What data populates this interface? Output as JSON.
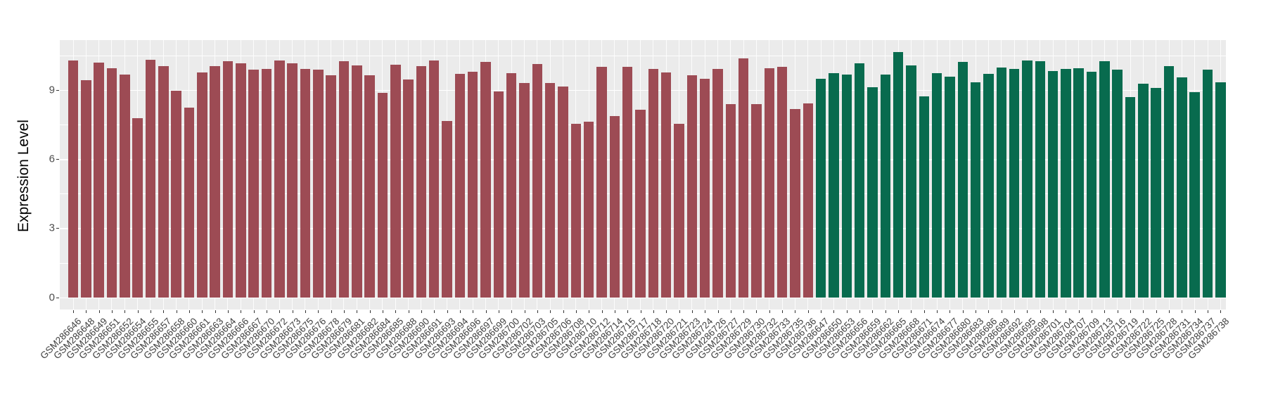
{
  "chart_data": {
    "type": "bar",
    "title": "",
    "xlabel": "",
    "ylabel": "Expression Level",
    "ylim": [
      0,
      11.17
    ],
    "yticks": [
      0,
      3,
      6,
      9
    ],
    "yticks_minor": [
      1.5,
      4.5,
      7.5,
      10.5
    ],
    "grid": "on",
    "legend": "none",
    "panel_background": "#EBEBEB",
    "grid_color": "#FFFFFF",
    "group_colors": {
      "group1": "#9D4B54",
      "group2": "#086B4E"
    },
    "series": [
      {
        "sample": "GSM286646",
        "value": 10.29,
        "group": "group1"
      },
      {
        "sample": "GSM286648",
        "value": 9.42,
        "group": "group1"
      },
      {
        "sample": "GSM286649",
        "value": 10.18,
        "group": "group1"
      },
      {
        "sample": "GSM286651",
        "value": 9.93,
        "group": "group1"
      },
      {
        "sample": "GSM286652",
        "value": 9.67,
        "group": "group1"
      },
      {
        "sample": "GSM286654",
        "value": 7.77,
        "group": "group1"
      },
      {
        "sample": "GSM286655",
        "value": 10.31,
        "group": "group1"
      },
      {
        "sample": "GSM286657",
        "value": 10.03,
        "group": "group1"
      },
      {
        "sample": "GSM286658",
        "value": 8.96,
        "group": "group1"
      },
      {
        "sample": "GSM286660",
        "value": 8.23,
        "group": "group1"
      },
      {
        "sample": "GSM286661",
        "value": 9.77,
        "group": "group1"
      },
      {
        "sample": "GSM286663",
        "value": 10.03,
        "group": "group1"
      },
      {
        "sample": "GSM286664",
        "value": 10.26,
        "group": "group1"
      },
      {
        "sample": "GSM286666",
        "value": 10.16,
        "group": "group1"
      },
      {
        "sample": "GSM286667",
        "value": 9.87,
        "group": "group1"
      },
      {
        "sample": "GSM286670",
        "value": 9.9,
        "group": "group1"
      },
      {
        "sample": "GSM286672",
        "value": 10.29,
        "group": "group1"
      },
      {
        "sample": "GSM286673",
        "value": 10.16,
        "group": "group1"
      },
      {
        "sample": "GSM286675",
        "value": 9.92,
        "group": "group1"
      },
      {
        "sample": "GSM286676",
        "value": 9.88,
        "group": "group1"
      },
      {
        "sample": "GSM286678",
        "value": 9.65,
        "group": "group1"
      },
      {
        "sample": "GSM286679",
        "value": 10.24,
        "group": "group1"
      },
      {
        "sample": "GSM286681",
        "value": 10.06,
        "group": "group1"
      },
      {
        "sample": "GSM286682",
        "value": 9.63,
        "group": "group1"
      },
      {
        "sample": "GSM286684",
        "value": 8.87,
        "group": "group1"
      },
      {
        "sample": "GSM286685",
        "value": 10.11,
        "group": "group1"
      },
      {
        "sample": "GSM286688",
        "value": 9.47,
        "group": "group1"
      },
      {
        "sample": "GSM286690",
        "value": 10.04,
        "group": "group1"
      },
      {
        "sample": "GSM286691",
        "value": 10.28,
        "group": "group1"
      },
      {
        "sample": "GSM286693",
        "value": 7.66,
        "group": "group1"
      },
      {
        "sample": "GSM286694",
        "value": 9.7,
        "group": "group1"
      },
      {
        "sample": "GSM286696",
        "value": 9.8,
        "group": "group1"
      },
      {
        "sample": "GSM286697",
        "value": 10.21,
        "group": "group1"
      },
      {
        "sample": "GSM286699",
        "value": 8.94,
        "group": "group1"
      },
      {
        "sample": "GSM286700",
        "value": 9.72,
        "group": "group1"
      },
      {
        "sample": "GSM286702",
        "value": 9.29,
        "group": "group1"
      },
      {
        "sample": "GSM286703",
        "value": 10.14,
        "group": "group1"
      },
      {
        "sample": "GSM286705",
        "value": 9.31,
        "group": "group1"
      },
      {
        "sample": "GSM286706",
        "value": 9.14,
        "group": "group1"
      },
      {
        "sample": "GSM286708",
        "value": 7.53,
        "group": "group1"
      },
      {
        "sample": "GSM286710",
        "value": 7.63,
        "group": "group1"
      },
      {
        "sample": "GSM286712",
        "value": 10.02,
        "group": "group1"
      },
      {
        "sample": "GSM286714",
        "value": 7.87,
        "group": "group1"
      },
      {
        "sample": "GSM286715",
        "value": 10.02,
        "group": "group1"
      },
      {
        "sample": "GSM286717",
        "value": 8.14,
        "group": "group1"
      },
      {
        "sample": "GSM286718",
        "value": 9.92,
        "group": "group1"
      },
      {
        "sample": "GSM286720",
        "value": 9.75,
        "group": "group1"
      },
      {
        "sample": "GSM286721",
        "value": 7.53,
        "group": "group1"
      },
      {
        "sample": "GSM286723",
        "value": 9.65,
        "group": "group1"
      },
      {
        "sample": "GSM286724",
        "value": 9.49,
        "group": "group1"
      },
      {
        "sample": "GSM286726",
        "value": 9.92,
        "group": "group1"
      },
      {
        "sample": "GSM286727",
        "value": 8.4,
        "group": "group1"
      },
      {
        "sample": "GSM286729",
        "value": 10.36,
        "group": "group1"
      },
      {
        "sample": "GSM286730",
        "value": 8.4,
        "group": "group1"
      },
      {
        "sample": "GSM286732",
        "value": 9.95,
        "group": "group1"
      },
      {
        "sample": "GSM286733",
        "value": 10.0,
        "group": "group1"
      },
      {
        "sample": "GSM286735",
        "value": 8.17,
        "group": "group1"
      },
      {
        "sample": "GSM286736",
        "value": 8.43,
        "group": "group1"
      },
      {
        "sample": "GSM286647",
        "value": 9.5,
        "group": "group2"
      },
      {
        "sample": "GSM286650",
        "value": 9.72,
        "group": "group2"
      },
      {
        "sample": "GSM286653",
        "value": 9.67,
        "group": "group2"
      },
      {
        "sample": "GSM286656",
        "value": 10.16,
        "group": "group2"
      },
      {
        "sample": "GSM286659",
        "value": 9.12,
        "group": "group2"
      },
      {
        "sample": "GSM286662",
        "value": 9.67,
        "group": "group2"
      },
      {
        "sample": "GSM286665",
        "value": 10.65,
        "group": "group2"
      },
      {
        "sample": "GSM286668",
        "value": 10.08,
        "group": "group2"
      },
      {
        "sample": "GSM286671",
        "value": 8.71,
        "group": "group2"
      },
      {
        "sample": "GSM286674",
        "value": 9.72,
        "group": "group2"
      },
      {
        "sample": "GSM286677",
        "value": 9.57,
        "group": "group2"
      },
      {
        "sample": "GSM286680",
        "value": 10.21,
        "group": "group2"
      },
      {
        "sample": "GSM286683",
        "value": 9.32,
        "group": "group2"
      },
      {
        "sample": "GSM286686",
        "value": 9.7,
        "group": "group2"
      },
      {
        "sample": "GSM286689",
        "value": 9.97,
        "group": "group2"
      },
      {
        "sample": "GSM286692",
        "value": 9.92,
        "group": "group2"
      },
      {
        "sample": "GSM286695",
        "value": 10.28,
        "group": "group2"
      },
      {
        "sample": "GSM286698",
        "value": 10.24,
        "group": "group2"
      },
      {
        "sample": "GSM286701",
        "value": 9.82,
        "group": "group2"
      },
      {
        "sample": "GSM286704",
        "value": 9.92,
        "group": "group2"
      },
      {
        "sample": "GSM286707",
        "value": 9.95,
        "group": "group2"
      },
      {
        "sample": "GSM286709",
        "value": 9.8,
        "group": "group2"
      },
      {
        "sample": "GSM286713",
        "value": 10.26,
        "group": "group2"
      },
      {
        "sample": "GSM286716",
        "value": 9.88,
        "group": "group2"
      },
      {
        "sample": "GSM286719",
        "value": 8.69,
        "group": "group2"
      },
      {
        "sample": "GSM286722",
        "value": 9.27,
        "group": "group2"
      },
      {
        "sample": "GSM286725",
        "value": 9.09,
        "group": "group2"
      },
      {
        "sample": "GSM286728",
        "value": 10.04,
        "group": "group2"
      },
      {
        "sample": "GSM286731",
        "value": 9.55,
        "group": "group2"
      },
      {
        "sample": "GSM286734",
        "value": 8.91,
        "group": "group2"
      },
      {
        "sample": "GSM286737",
        "value": 9.88,
        "group": "group2"
      },
      {
        "sample": "GSM286738",
        "value": 9.33,
        "group": "group2"
      }
    ]
  }
}
